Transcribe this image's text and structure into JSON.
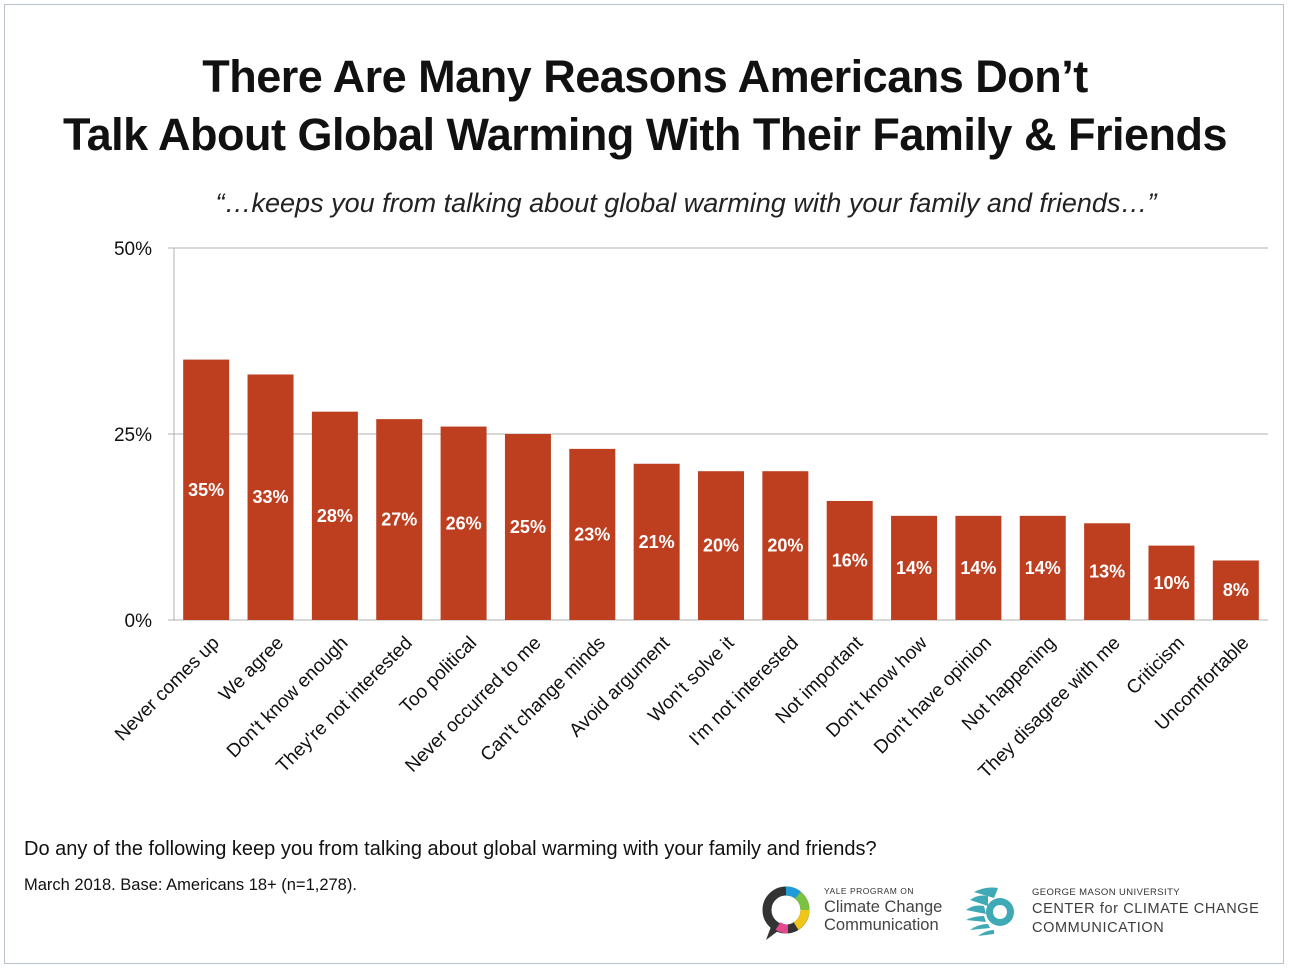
{
  "title_line1": "There Are Many Reasons Americans Don’t",
  "title_line2": "Talk About Global Warming With Their Family & Friends",
  "subtitle": "“…keeps you from talking about global warming with your family and friends…”",
  "footnote_question": "Do any of the following keep you from talking about global warming with your family and friends?",
  "footnote_base": "March 2018. Base: Americans 18+ (n=1,278).",
  "logo_yale": {
    "small": "YALE PROGRAM ON",
    "line1": "Climate Change",
    "line2": "Communication"
  },
  "logo_gmu": {
    "small": "GEORGE MASON UNIVERSITY",
    "line1": "CENTER for CLIMATE CHANGE",
    "line2": "COMMUNICATION"
  },
  "colors": {
    "bar": "#bd3f20",
    "bar_label": "#ffffff",
    "grid": "#b0b0b0",
    "gmu_teal": "#3fa9b5"
  },
  "chart_data": {
    "type": "bar",
    "categories": [
      "Never comes up",
      "We agree",
      "Don't know enough",
      "They're not interested",
      "Too political",
      "Never occurred to me",
      "Can't change minds",
      "Avoid argument",
      "Won't solve it",
      "I'm not interested",
      "Not important",
      "Don't know how",
      "Don't have opinion",
      "Not happening",
      "They disagree with me",
      "Criticism",
      "Uncomfortable"
    ],
    "values": [
      35,
      33,
      28,
      27,
      26,
      25,
      23,
      21,
      20,
      20,
      16,
      14,
      14,
      14,
      13,
      10,
      8
    ],
    "value_labels": [
      "35%",
      "33%",
      "28%",
      "27%",
      "26%",
      "25%",
      "23%",
      "21%",
      "20%",
      "20%",
      "16%",
      "14%",
      "14%",
      "14%",
      "13%",
      "10%",
      "8%"
    ],
    "yticks": [
      0,
      25,
      50
    ],
    "ytick_labels": [
      "0%",
      "25%",
      "50%"
    ],
    "ylim": [
      0,
      50
    ],
    "grid": true,
    "legend": "none"
  }
}
